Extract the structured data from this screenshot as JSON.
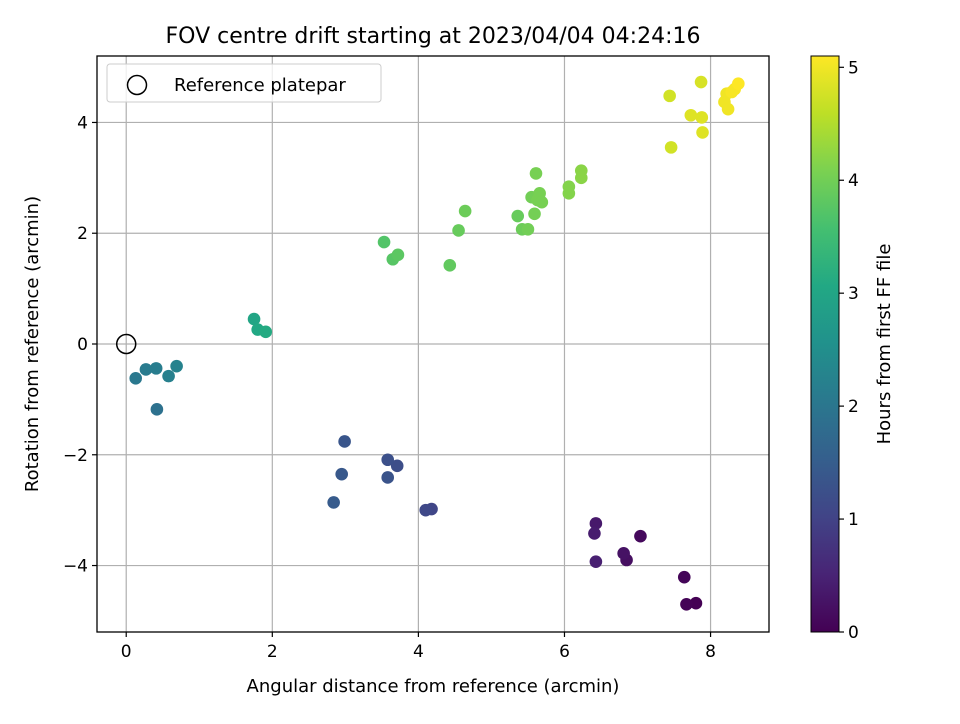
{
  "chart_data": {
    "type": "scatter",
    "title": "FOV centre drift starting at 2023/04/04 04:24:16",
    "xlabel": "Angular distance from reference (arcmin)",
    "ylabel": "Rotation from reference (arcmin)",
    "xlim": [
      -0.4,
      8.8
    ],
    "ylim": [
      -5.2,
      5.2
    ],
    "xticks": [
      0,
      2,
      4,
      6,
      8
    ],
    "xtick_labels": [
      "0",
      "2",
      "4",
      "6",
      "8"
    ],
    "yticks": [
      -4,
      -2,
      0,
      2,
      4
    ],
    "ytick_labels": [
      "−4",
      "−2",
      "0",
      "2",
      "4"
    ],
    "grid": true,
    "legend": {
      "position": "upper-left",
      "label": "Reference platepar"
    },
    "reference_point": {
      "x": 0,
      "y": 0
    },
    "colorbar": {
      "label": "Hours from first FF file",
      "range": [
        0,
        5.1
      ],
      "ticks": [
        0,
        1,
        2,
        3,
        4,
        5
      ],
      "tick_labels": [
        "0",
        "1",
        "2",
        "3",
        "4",
        "5"
      ],
      "colormap": "viridis"
    },
    "points": [
      {
        "x": 7.8,
        "y": -4.68,
        "t": 0.0
      },
      {
        "x": 7.67,
        "y": -4.7,
        "t": 0.03
      },
      {
        "x": 7.64,
        "y": -4.21,
        "t": 0.06
      },
      {
        "x": 7.04,
        "y": -3.47,
        "t": 0.12
      },
      {
        "x": 6.85,
        "y": -3.9,
        "t": 0.2
      },
      {
        "x": 6.81,
        "y": -3.78,
        "t": 0.25
      },
      {
        "x": 6.43,
        "y": -3.24,
        "t": 0.35
      },
      {
        "x": 6.41,
        "y": -3.42,
        "t": 0.4
      },
      {
        "x": 6.43,
        "y": -3.93,
        "t": 0.45
      },
      {
        "x": 4.18,
        "y": -2.98,
        "t": 1.05
      },
      {
        "x": 4.1,
        "y": -3.0,
        "t": 1.1
      },
      {
        "x": 3.71,
        "y": -2.2,
        "t": 1.2
      },
      {
        "x": 3.58,
        "y": -2.09,
        "t": 1.25
      },
      {
        "x": 3.58,
        "y": -2.41,
        "t": 1.3
      },
      {
        "x": 2.99,
        "y": -1.76,
        "t": 1.35
      },
      {
        "x": 2.95,
        "y": -2.35,
        "t": 1.4
      },
      {
        "x": 2.84,
        "y": -2.86,
        "t": 1.45
      },
      {
        "x": 0.42,
        "y": -1.18,
        "t": 1.9
      },
      {
        "x": 0.13,
        "y": -0.62,
        "t": 2.05
      },
      {
        "x": 0.27,
        "y": -0.46,
        "t": 2.1
      },
      {
        "x": 0.41,
        "y": -0.44,
        "t": 2.15
      },
      {
        "x": 0.58,
        "y": -0.58,
        "t": 2.2
      },
      {
        "x": 0.69,
        "y": -0.4,
        "t": 2.25
      },
      {
        "x": 1.75,
        "y": 0.45,
        "t": 3.0
      },
      {
        "x": 1.8,
        "y": 0.26,
        "t": 3.05
      },
      {
        "x": 1.91,
        "y": 0.22,
        "t": 3.1
      },
      {
        "x": 3.53,
        "y": 1.84,
        "t": 3.7
      },
      {
        "x": 3.65,
        "y": 1.53,
        "t": 3.75
      },
      {
        "x": 3.72,
        "y": 1.61,
        "t": 3.8
      },
      {
        "x": 4.43,
        "y": 1.42,
        "t": 3.85
      },
      {
        "x": 4.55,
        "y": 2.05,
        "t": 3.9
      },
      {
        "x": 4.64,
        "y": 2.4,
        "t": 3.95
      },
      {
        "x": 5.36,
        "y": 2.31,
        "t": 3.9
      },
      {
        "x": 5.42,
        "y": 2.07,
        "t": 3.95
      },
      {
        "x": 5.5,
        "y": 2.07,
        "t": 4.0
      },
      {
        "x": 5.55,
        "y": 2.65,
        "t": 4.0
      },
      {
        "x": 5.59,
        "y": 2.35,
        "t": 4.02
      },
      {
        "x": 5.61,
        "y": 3.08,
        "t": 4.05
      },
      {
        "x": 5.63,
        "y": 2.6,
        "t": 4.05
      },
      {
        "x": 5.66,
        "y": 2.72,
        "t": 4.05
      },
      {
        "x": 5.69,
        "y": 2.56,
        "t": 4.05
      },
      {
        "x": 6.06,
        "y": 2.84,
        "t": 4.15
      },
      {
        "x": 6.06,
        "y": 2.72,
        "t": 4.15
      },
      {
        "x": 6.23,
        "y": 3.13,
        "t": 4.2
      },
      {
        "x": 6.23,
        "y": 3.0,
        "t": 4.2
      },
      {
        "x": 7.44,
        "y": 4.48,
        "t": 4.75
      },
      {
        "x": 7.46,
        "y": 3.55,
        "t": 4.75
      },
      {
        "x": 7.73,
        "y": 4.13,
        "t": 4.85
      },
      {
        "x": 7.87,
        "y": 4.73,
        "t": 4.8
      },
      {
        "x": 7.88,
        "y": 4.09,
        "t": 4.85
      },
      {
        "x": 7.89,
        "y": 3.82,
        "t": 4.85
      },
      {
        "x": 8.19,
        "y": 4.37,
        "t": 5.0
      },
      {
        "x": 8.22,
        "y": 4.52,
        "t": 5.0
      },
      {
        "x": 8.24,
        "y": 4.24,
        "t": 5.0
      },
      {
        "x": 8.29,
        "y": 4.55,
        "t": 5.05
      },
      {
        "x": 8.33,
        "y": 4.6,
        "t": 5.05
      },
      {
        "x": 8.38,
        "y": 4.7,
        "t": 5.1
      }
    ]
  }
}
